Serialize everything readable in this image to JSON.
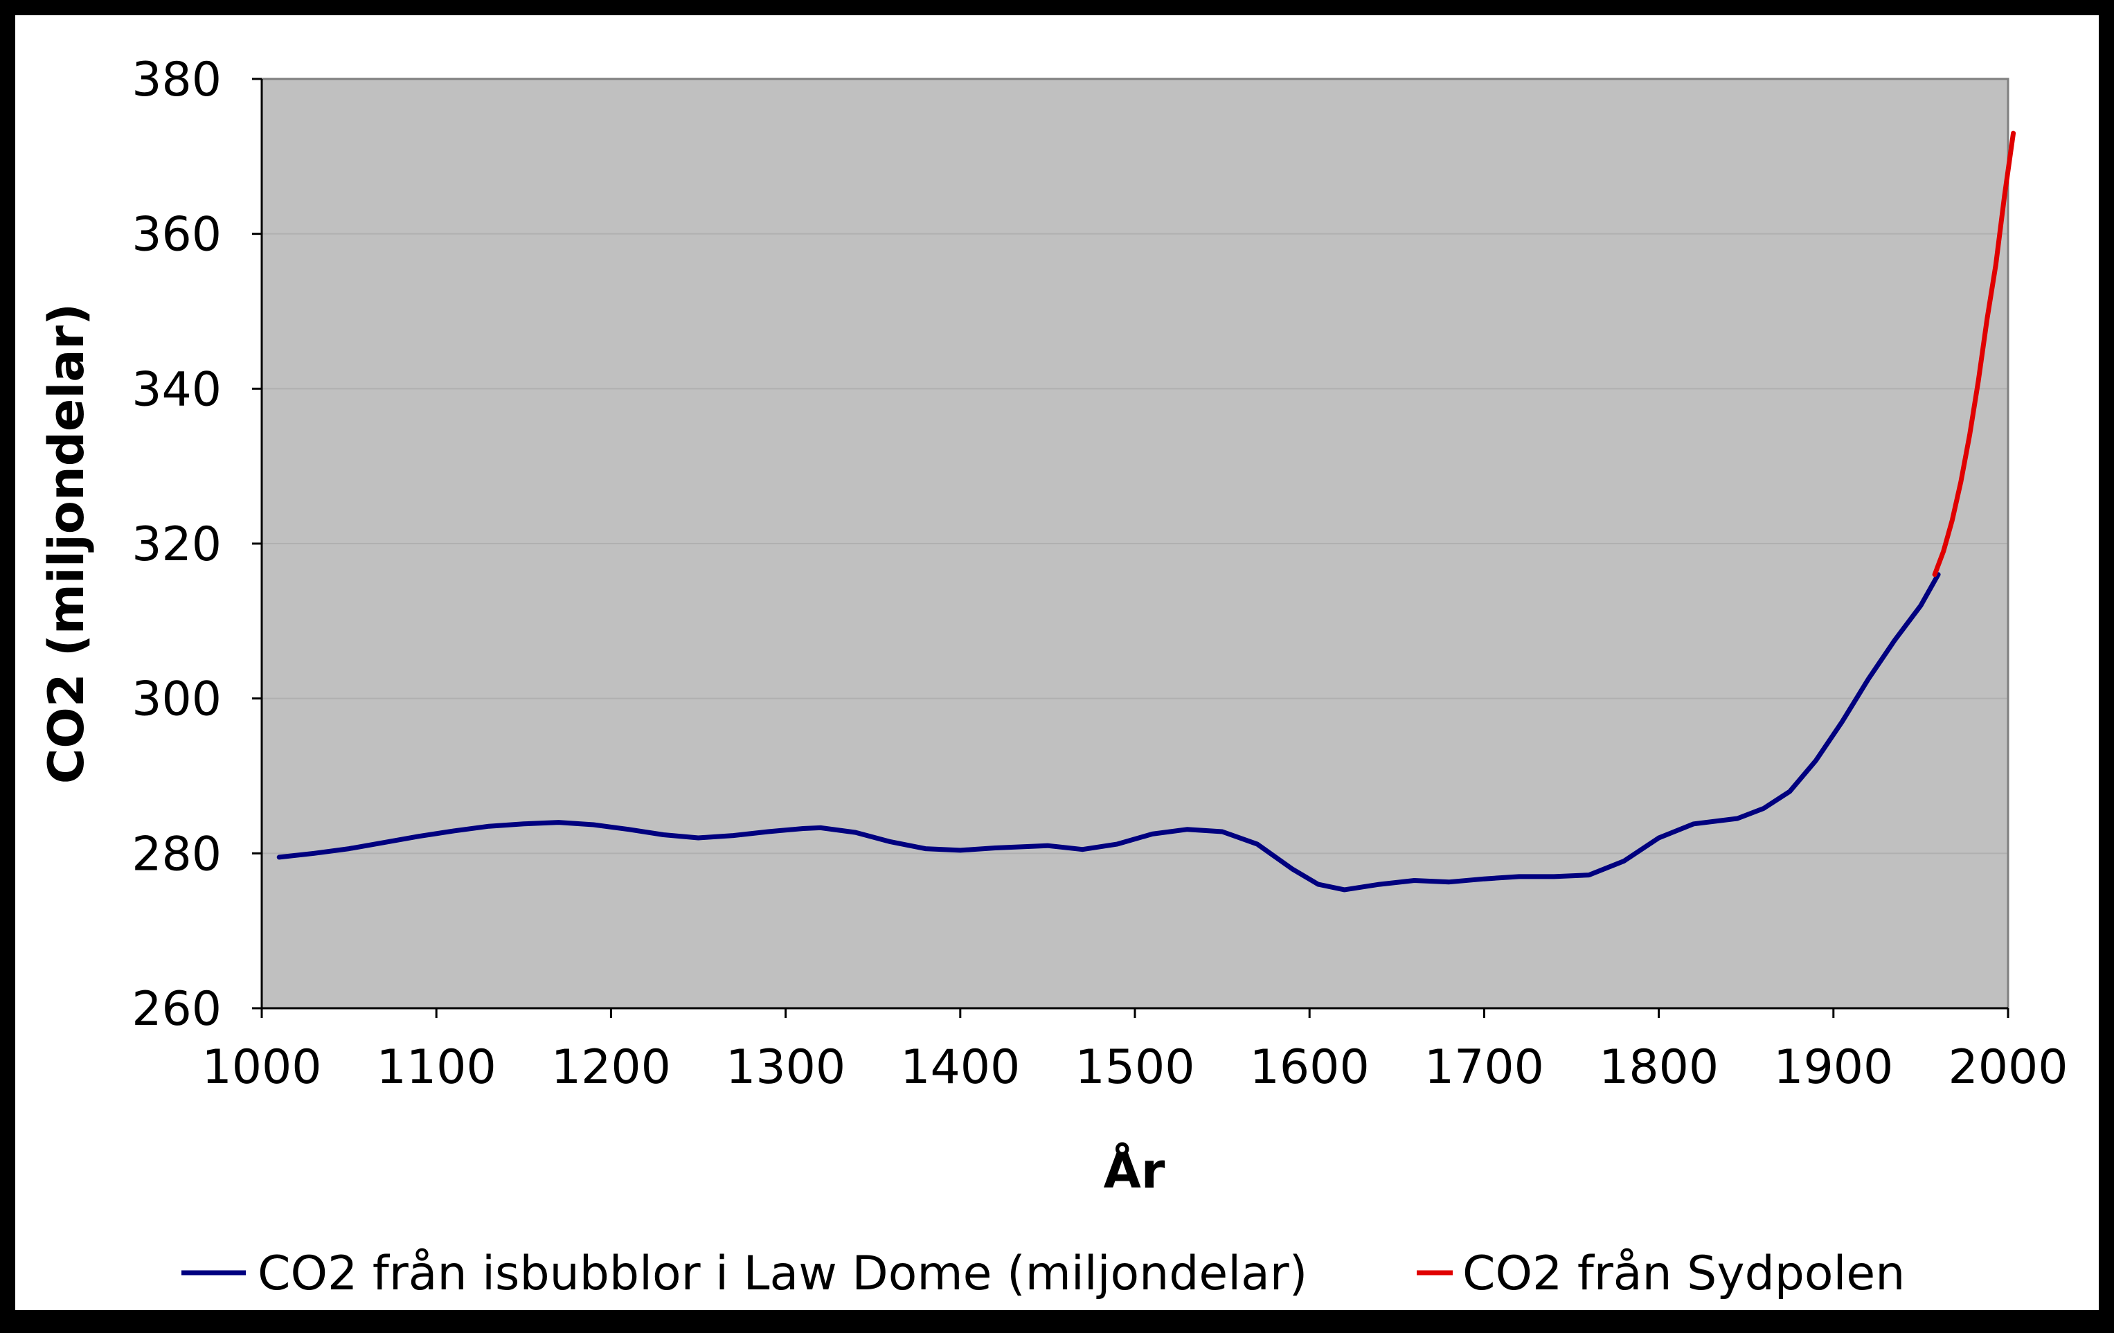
{
  "chart_data": {
    "type": "line",
    "title": "",
    "xlabel": "År",
    "ylabel": "CO2 (miljondelar)",
    "xlim": [
      1000,
      2000
    ],
    "ylim": [
      260,
      380
    ],
    "x_ticks": [
      1000,
      1100,
      1200,
      1300,
      1400,
      1500,
      1600,
      1700,
      1800,
      1900,
      2000
    ],
    "y_ticks": [
      260,
      280,
      300,
      320,
      340,
      360,
      380
    ],
    "grid": true,
    "legend_position": "bottom",
    "series": [
      {
        "name": "CO2 från isbubblor i Law Dome (miljondelar)",
        "color": "#00007f",
        "x": [
          1010,
          1030,
          1050,
          1070,
          1090,
          1110,
          1130,
          1150,
          1170,
          1190,
          1210,
          1230,
          1250,
          1270,
          1290,
          1310,
          1320,
          1340,
          1360,
          1380,
          1400,
          1420,
          1450,
          1470,
          1490,
          1510,
          1530,
          1550,
          1570,
          1590,
          1605,
          1620,
          1640,
          1660,
          1680,
          1700,
          1720,
          1740,
          1760,
          1780,
          1800,
          1820,
          1845,
          1860,
          1875,
          1890,
          1905,
          1920,
          1935,
          1950,
          1960
        ],
        "y": [
          279.5,
          280.0,
          280.6,
          281.4,
          282.2,
          282.9,
          283.5,
          283.8,
          284.0,
          283.7,
          283.1,
          282.4,
          282.0,
          282.3,
          282.8,
          283.2,
          283.3,
          282.7,
          281.5,
          280.6,
          280.4,
          280.7,
          281.0,
          280.5,
          281.2,
          282.5,
          283.1,
          282.8,
          281.2,
          278.0,
          276.0,
          275.3,
          276.0,
          276.5,
          276.3,
          276.7,
          277.0,
          277.0,
          277.2,
          279.0,
          282.0,
          283.8,
          284.5,
          285.8,
          288.0,
          292.0,
          297.0,
          302.5,
          307.5,
          312.0,
          316.0
        ]
      },
      {
        "name": "CO2 från Sydpolen",
        "color": "#e00000",
        "x": [
          1958,
          1963,
          1968,
          1973,
          1978,
          1983,
          1988,
          1993,
          1998,
          2003
        ],
        "y": [
          316.0,
          319.0,
          323.0,
          328.0,
          334.0,
          341.0,
          349.0,
          356.0,
          365.0,
          373.0
        ]
      }
    ]
  }
}
